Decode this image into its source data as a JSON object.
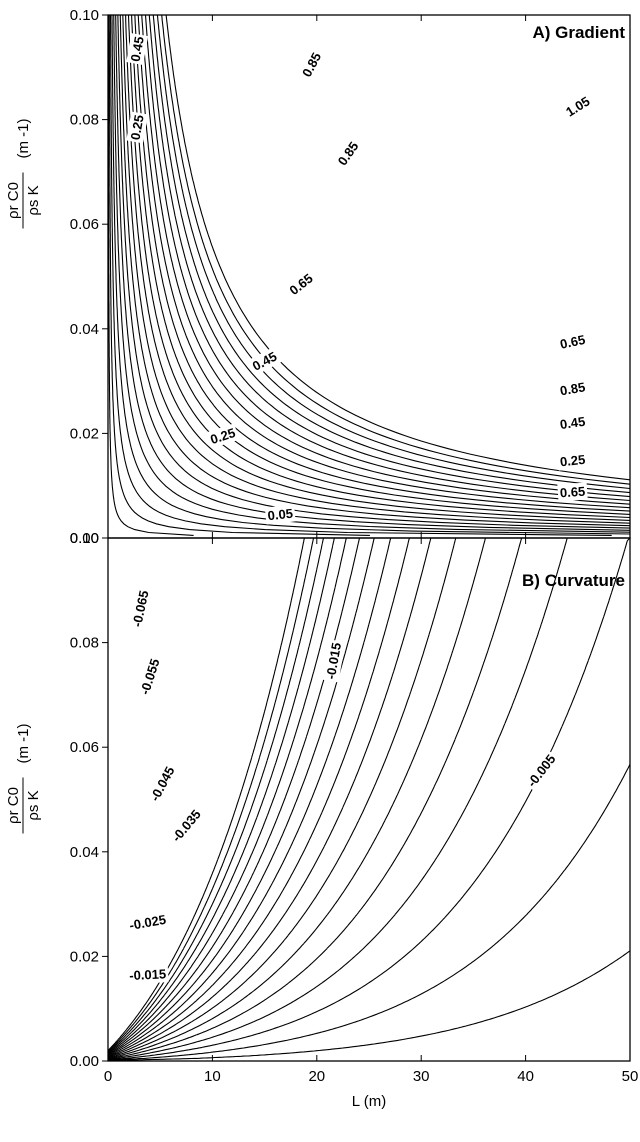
{
  "chart_data": [
    {
      "type": "contour",
      "title": "A) Gradient",
      "xlabel": "",
      "ylabel": {
        "numerator": "ρr C0",
        "denominator": "ρs K",
        "unit": "(m -1)"
      },
      "xlim": [
        0,
        50
      ],
      "ylim": [
        0,
        0.1
      ],
      "xticks": [],
      "yticks": [
        "0.00",
        "0.02",
        "0.04",
        "0.06",
        "0.08",
        "0.10"
      ],
      "contour_interval": 0.05,
      "contour_levels": [
        0.05,
        0.1,
        0.15,
        0.2,
        0.25,
        0.3,
        0.35,
        0.4,
        0.45,
        0.5,
        0.55,
        0.6,
        0.65,
        0.7,
        0.75,
        0.8,
        0.85,
        0.9,
        0.95,
        1.0,
        1.05
      ],
      "contour_labels": [
        "0.05",
        "0.25",
        "0.45",
        "0.65",
        "0.85",
        "0.25",
        "0.45",
        "0.65",
        "0.85",
        "0.45",
        "0.25",
        "0.65",
        "0.85",
        "1.05"
      ]
    },
    {
      "type": "contour",
      "title": "B) Curvature",
      "xlabel": "L (m)",
      "ylabel": {
        "numerator": "ρr C0",
        "denominator": "ρs K",
        "unit": "(m -1)"
      },
      "xlim": [
        0,
        50
      ],
      "ylim": [
        0,
        0.1
      ],
      "xticks": [
        "0",
        "10",
        "20",
        "30",
        "40",
        "50"
      ],
      "yticks": [
        "0.00",
        "0.02",
        "0.04",
        "0.06",
        "0.08",
        "0.10"
      ],
      "contour_interval": 0.005,
      "contour_levels": [
        -0.085,
        -0.08,
        -0.075,
        -0.07,
        -0.065,
        -0.06,
        -0.055,
        -0.05,
        -0.045,
        -0.04,
        -0.035,
        -0.03,
        -0.025,
        -0.02,
        -0.015,
        -0.01,
        -0.005
      ],
      "contour_labels": [
        "-0.015",
        "-0.025",
        "-0.035",
        "-0.045",
        "-0.055",
        "-0.065",
        "-0.015",
        "-0.005"
      ]
    }
  ]
}
